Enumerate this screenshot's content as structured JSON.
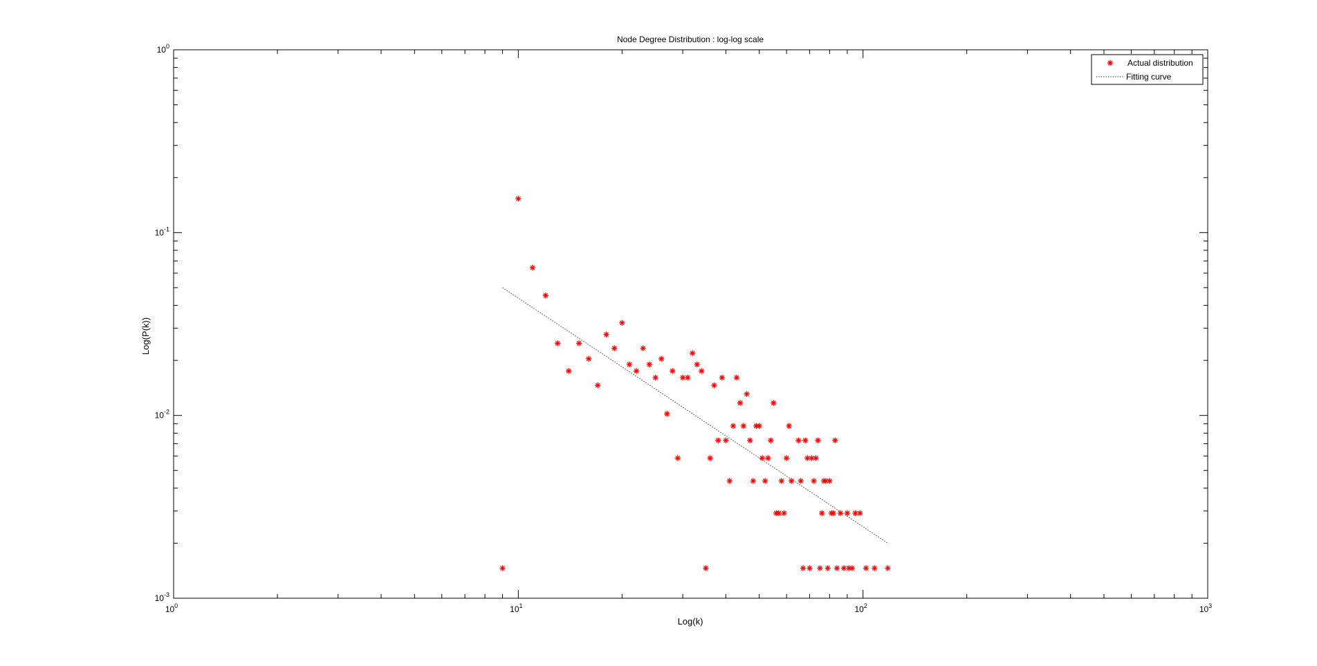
{
  "chart_data": {
    "type": "scatter",
    "title": "Node Degree Distribution : log-log scale",
    "xlabel": "Log(k)",
    "ylabel": "Log(P(k))",
    "xscale": "log",
    "yscale": "log",
    "xlim": [
      1,
      1000
    ],
    "ylim": [
      0.001,
      1
    ],
    "grid": false,
    "legend_position": "top-right",
    "x_ticks": [
      {
        "value": 1,
        "base": "10",
        "exp": "0"
      },
      {
        "value": 10,
        "base": "10",
        "exp": "1"
      },
      {
        "value": 100,
        "base": "10",
        "exp": "2"
      },
      {
        "value": 1000,
        "base": "10",
        "exp": "3"
      }
    ],
    "y_ticks": [
      {
        "value": 0.001,
        "base": "10",
        "exp": "-3"
      },
      {
        "value": 0.01,
        "base": "10",
        "exp": "-2"
      },
      {
        "value": 0.1,
        "base": "10",
        "exp": "-1"
      },
      {
        "value": 1,
        "base": "10",
        "exp": "0"
      }
    ],
    "series": [
      {
        "name": "Actual distribution",
        "style": "marker-star",
        "color": "#ff0000",
        "points": [
          [
            9,
            0.00146
          ],
          [
            10,
            0.1533
          ],
          [
            11,
            0.0643
          ],
          [
            12,
            0.0453
          ],
          [
            13,
            0.0248
          ],
          [
            14,
            0.0175
          ],
          [
            15,
            0.0248
          ],
          [
            16,
            0.0204
          ],
          [
            17,
            0.0146
          ],
          [
            18,
            0.0277
          ],
          [
            19,
            0.0233
          ],
          [
            20,
            0.0321
          ],
          [
            21,
            0.019
          ],
          [
            22,
            0.0175
          ],
          [
            23,
            0.0233
          ],
          [
            24,
            0.019
          ],
          [
            25,
            0.0161
          ],
          [
            26,
            0.0204
          ],
          [
            27,
            0.0102
          ],
          [
            28,
            0.0175
          ],
          [
            29,
            0.00584
          ],
          [
            30,
            0.0161
          ],
          [
            31,
            0.0161
          ],
          [
            32,
            0.0219
          ],
          [
            33,
            0.019
          ],
          [
            34,
            0.0175
          ],
          [
            35,
            0.00146
          ],
          [
            36,
            0.00584
          ],
          [
            37,
            0.0146
          ],
          [
            38,
            0.0073
          ],
          [
            39,
            0.0161
          ],
          [
            40,
            0.0073
          ],
          [
            41,
            0.00438
          ],
          [
            42,
            0.00876
          ],
          [
            43,
            0.0161
          ],
          [
            44,
            0.0117
          ],
          [
            45,
            0.00876
          ],
          [
            46,
            0.0131
          ],
          [
            47,
            0.0073
          ],
          [
            48,
            0.00438
          ],
          [
            49,
            0.00876
          ],
          [
            50,
            0.00876
          ],
          [
            51,
            0.00584
          ],
          [
            52,
            0.00438
          ],
          [
            53,
            0.00584
          ],
          [
            54,
            0.0073
          ],
          [
            55,
            0.0117
          ],
          [
            56,
            0.00292
          ],
          [
            57,
            0.00292
          ],
          [
            58,
            0.00438
          ],
          [
            59,
            0.00292
          ],
          [
            60,
            0.00584
          ],
          [
            61,
            0.00876
          ],
          [
            62,
            0.00438
          ],
          [
            65,
            0.0073
          ],
          [
            66,
            0.00438
          ],
          [
            67,
            0.00146
          ],
          [
            68,
            0.0073
          ],
          [
            69,
            0.00584
          ],
          [
            70,
            0.00146
          ],
          [
            71,
            0.00584
          ],
          [
            72,
            0.00438
          ],
          [
            73,
            0.00584
          ],
          [
            74,
            0.0073
          ],
          [
            75,
            0.00146
          ],
          [
            76,
            0.00292
          ],
          [
            77,
            0.00438
          ],
          [
            78,
            0.00438
          ],
          [
            79,
            0.00146
          ],
          [
            80,
            0.00438
          ],
          [
            81,
            0.00292
          ],
          [
            82,
            0.00292
          ],
          [
            83,
            0.0073
          ],
          [
            84,
            0.00146
          ],
          [
            86,
            0.00292
          ],
          [
            88,
            0.00146
          ],
          [
            90,
            0.00292
          ],
          [
            91,
            0.00146
          ],
          [
            93,
            0.00146
          ],
          [
            95,
            0.00292
          ],
          [
            98,
            0.00292
          ],
          [
            102,
            0.00146
          ],
          [
            108,
            0.00146
          ],
          [
            118,
            0.00146
          ]
        ]
      },
      {
        "name": "Fitting curve",
        "style": "dotted-line",
        "color": "#000000",
        "points": [
          [
            9,
            0.05
          ],
          [
            118,
            0.002
          ]
        ]
      }
    ]
  }
}
